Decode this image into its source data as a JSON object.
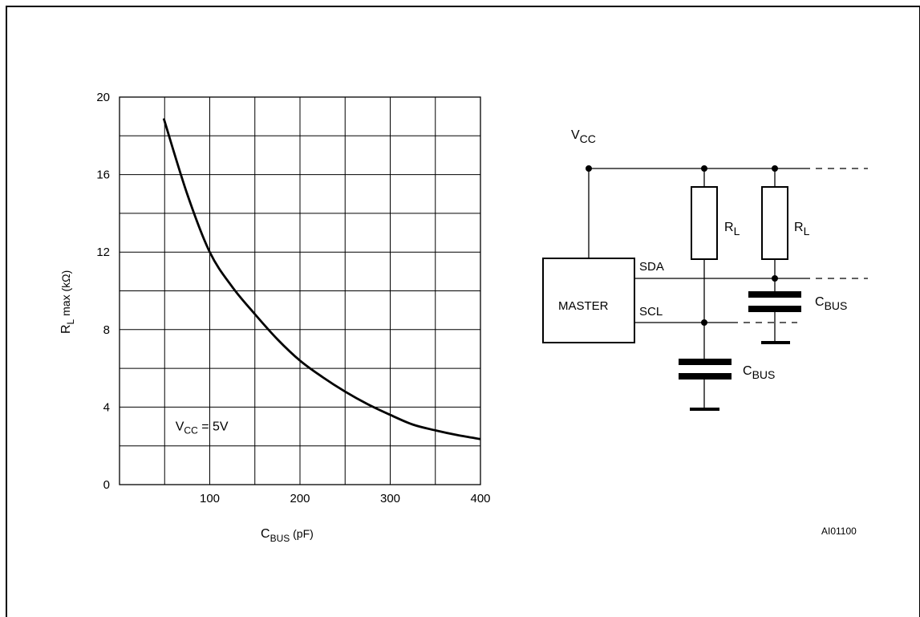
{
  "chart_data": {
    "type": "line",
    "xlabel": {
      "main": "C",
      "sub": "BUS",
      "unit": " (pF)"
    },
    "ylabel": {
      "main": "R",
      "sub": "L",
      "rest": " max (kΩ)"
    },
    "xlim": [
      0,
      400
    ],
    "ylim": [
      0,
      20
    ],
    "x_ticks": [
      100,
      200,
      300,
      400
    ],
    "x_tick_labels": [
      "100",
      "200",
      "300",
      "400"
    ],
    "y_ticks": [
      0,
      4,
      8,
      12,
      16,
      20
    ],
    "y_tick_labels": [
      "0",
      "4",
      "8",
      "12",
      "16",
      "20"
    ],
    "grid": true,
    "series": [
      {
        "x": [
          49,
          75,
          100,
          125,
          150,
          175,
          200,
          225,
          250,
          275,
          300,
          325,
          350,
          375,
          400
        ],
        "y": [
          18.9,
          15.0,
          12.0,
          10.2,
          8.8,
          7.5,
          6.4,
          5.55,
          4.8,
          4.15,
          3.6,
          3.1,
          2.8,
          2.55,
          2.35
        ]
      }
    ],
    "annotation": {
      "main": "V",
      "sub": "CC",
      "rest": " = 5V",
      "x": 62,
      "y": 3
    }
  },
  "circuit": {
    "vcc": {
      "main": "V",
      "sub": "CC"
    },
    "master_label": "MASTER",
    "sda_label": "SDA",
    "scl_label": "SCL",
    "resistors": [
      {
        "main": "R",
        "sub": "L"
      },
      {
        "main": "R",
        "sub": "L"
      }
    ],
    "capacitors": [
      {
        "main": "C",
        "sub": "BUS"
      },
      {
        "main": "C",
        "sub": "BUS"
      }
    ]
  },
  "figure_ref": "AI01100"
}
